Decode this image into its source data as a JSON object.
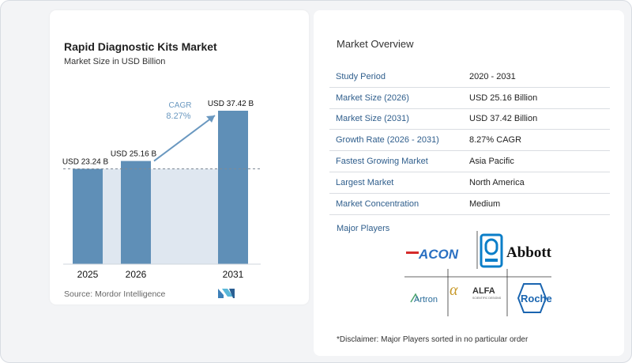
{
  "chart": {
    "title": "Rapid Diagnostic Kits Market",
    "subtitle": "Market Size in USD Billion",
    "source": "Source:  Mordor Intelligence",
    "cagr_label": "CAGR",
    "cagr_value": "8.27%"
  },
  "chart_data": {
    "type": "bar",
    "categories": [
      "2025",
      "2026",
      "2031"
    ],
    "values": [
      23.24,
      25.16,
      37.42
    ],
    "data_labels": [
      "USD 23.24 B",
      "USD 25.16 B",
      "USD 37.42 B"
    ],
    "ylim": [
      0,
      40
    ],
    "annotation": "CAGR 8.27%",
    "grid": false
  },
  "colors": {
    "bar": "#5f8fb7",
    "shade": "#dfe7f0",
    "arrow": "#6a98c0",
    "label_blue": "#2f5e8c"
  },
  "overview": {
    "title": "Market Overview",
    "rows": [
      {
        "key": "Study Period",
        "value": "2020 - 2031"
      },
      {
        "key": "Market Size (2026)",
        "value": "USD 25.16 Billion"
      },
      {
        "key": "Market Size (2031)",
        "value": "USD 37.42 Billion"
      },
      {
        "key": "Growth Rate (2026 - 2031)",
        "value": "8.27% CAGR"
      },
      {
        "key": "Fastest Growing Market",
        "value": "Asia Pacific"
      },
      {
        "key": "Largest Market",
        "value": "North America"
      },
      {
        "key": "Market Concentration",
        "value": "Medium"
      }
    ]
  },
  "players": {
    "title": "Major Players",
    "logos": [
      "ACON",
      "Abbott",
      "Artron",
      "ALFA",
      "Roche"
    ],
    "alfa_tagline": "SCIENTIFIC DESIGNS"
  },
  "disclaimer": "*Disclaimer: Major Players sorted in no particular order"
}
